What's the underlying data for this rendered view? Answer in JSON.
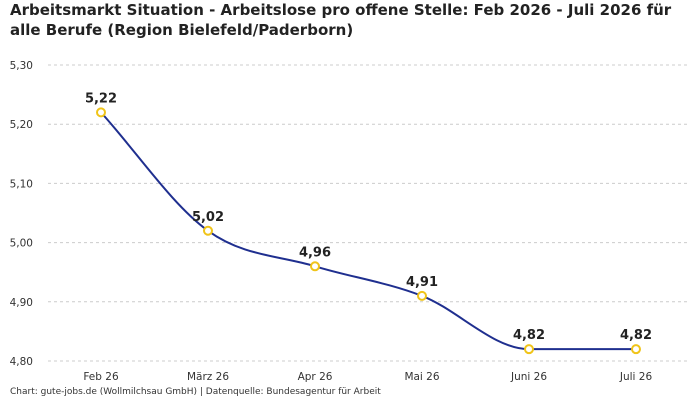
{
  "title": "Arbeitsmarkt Situation - Arbeitslose pro offene Stelle: Feb 2026 - Juli 2026 für alle Berufe (Region Bielefeld/Paderborn)",
  "footer": "Chart: gute-jobs.de (Wollmilchsau GmbH) | Datenquelle: Bundesagentur für Arbeit",
  "chart_data": {
    "type": "line",
    "title": "Arbeitsmarkt Situation - Arbeitslose pro offene Stelle: Feb 2026 - Juli 2026 für alle Berufe (Region Bielefeld/Paderborn)",
    "categories": [
      "Feb 26",
      "März 26",
      "Apr 26",
      "Mai 26",
      "Juni 26",
      "Juli 26"
    ],
    "series": [
      {
        "values": [
          5.22,
          5.02,
          4.96,
          4.91,
          4.82,
          4.82
        ]
      }
    ],
    "data_labels": [
      "5,22",
      "5,02",
      "4,96",
      "4,91",
      "4,82",
      "4,82"
    ],
    "ylim": [
      4.8,
      5.3
    ],
    "yticks": [
      4.8,
      4.9,
      5.0,
      5.1,
      5.2,
      5.3
    ],
    "ytick_labels": [
      "4,80",
      "4,90",
      "5,00",
      "5,10",
      "5,20",
      "5,30"
    ],
    "xlabel": "",
    "ylabel": "",
    "grid": "horizontal dashed",
    "legend": "none",
    "colors": {
      "line": "#1f2f8f",
      "marker_stroke": "#f0c419",
      "marker_fill": "#ffffff",
      "grid": "#cccccc"
    }
  }
}
